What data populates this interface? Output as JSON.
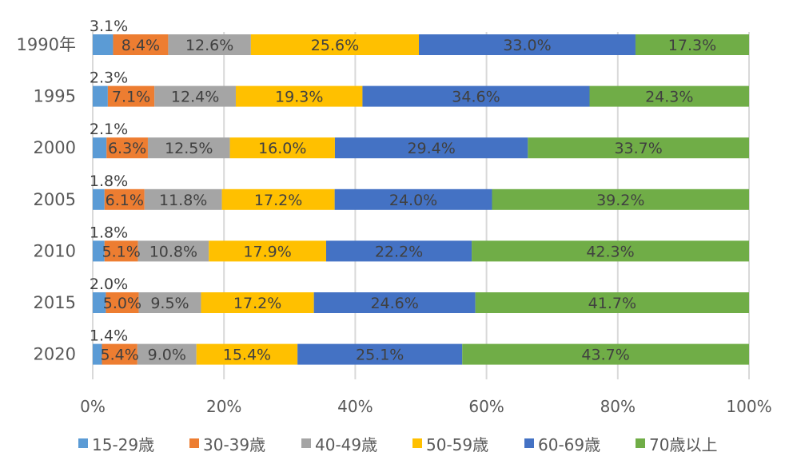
{
  "chart_data": {
    "type": "bar",
    "orientation": "horizontal",
    "stacked": "percent",
    "title": "",
    "xlabel": "",
    "ylabel": "",
    "xlim": [
      0,
      100
    ],
    "x_ticks": [
      "0%",
      "20%",
      "40%",
      "60%",
      "80%",
      "100%"
    ],
    "grid": true,
    "legend_position": "bottom",
    "categories": [
      "1990年",
      "1995",
      "2000",
      "2005",
      "2010",
      "2015",
      "2020"
    ],
    "series": [
      {
        "name": "15-29歳",
        "color": "#5B9BD5",
        "values": [
          3.1,
          2.3,
          2.1,
          1.8,
          1.8,
          2.0,
          1.4
        ]
      },
      {
        "name": "30-39歳",
        "color": "#ED7D31",
        "values": [
          8.4,
          7.1,
          6.3,
          6.1,
          5.1,
          5.0,
          5.4
        ]
      },
      {
        "name": "40-49歳",
        "color": "#A5A5A5",
        "values": [
          12.6,
          12.4,
          12.5,
          11.8,
          10.8,
          9.5,
          9.0
        ]
      },
      {
        "name": "50-59歳",
        "color": "#FFC000",
        "values": [
          25.6,
          19.3,
          16.0,
          17.2,
          17.9,
          17.2,
          15.4
        ]
      },
      {
        "name": "60-69歳",
        "color": "#4472C4",
        "values": [
          33.0,
          34.6,
          29.4,
          24.0,
          22.2,
          24.6,
          25.1
        ]
      },
      {
        "name": "70歳以上",
        "color": "#70AD47",
        "values": [
          17.3,
          24.3,
          33.7,
          39.2,
          42.3,
          41.7,
          43.7
        ]
      }
    ],
    "label_format": "{v}%"
  }
}
